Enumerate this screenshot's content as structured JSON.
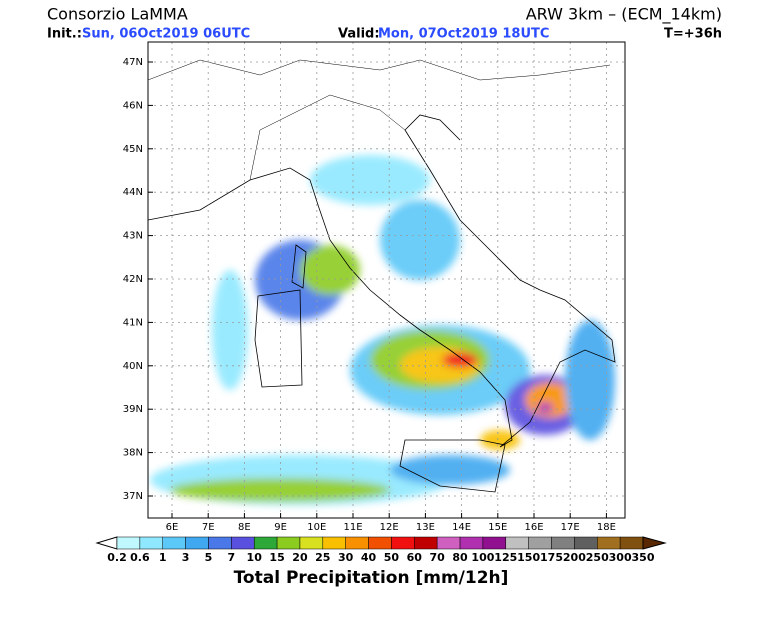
{
  "header": {
    "title": "Consorzio LaMMA",
    "model": "ARW 3km – (ECM_14km)",
    "init_label": "Init.:",
    "init": "Sun, 06Oct2019 06UTC",
    "valid_label": "Valid:",
    "valid": "Mon, 07Oct2019 18UTC",
    "lead": "T=+36h"
  },
  "map": {
    "latitude_labels": [
      "47N",
      "46N",
      "45N",
      "44N",
      "43N",
      "42N",
      "41N",
      "40N",
      "39N",
      "38N",
      "37N"
    ],
    "longitude_labels": [
      "6E",
      "7E",
      "8E",
      "9E",
      "10E",
      "11E",
      "12E",
      "13E",
      "14E",
      "15E",
      "16E",
      "17E",
      "18E"
    ]
  },
  "colorbar": {
    "levels": [
      0.2,
      0.6,
      1,
      3,
      5,
      7,
      10,
      15,
      20,
      25,
      30,
      40,
      50,
      60,
      70,
      80,
      100,
      125,
      150,
      175,
      200,
      250,
      300,
      350
    ],
    "colors": [
      "#bff8ff",
      "#8fe8ff",
      "#5cc8f8",
      "#3fa8f0",
      "#4a78e8",
      "#5a50e0",
      "#2fa83a",
      "#8ccc20",
      "#d8e020",
      "#f8c000",
      "#f89000",
      "#f05000",
      "#f01010",
      "#c00000",
      "#d060c0",
      "#b030b0",
      "#901090",
      "#c0c0c0",
      "#a0a0a0",
      "#808080",
      "#606060",
      "#a07020",
      "#805010"
    ],
    "title": "Total Precipitation [mm/12h]"
  }
}
